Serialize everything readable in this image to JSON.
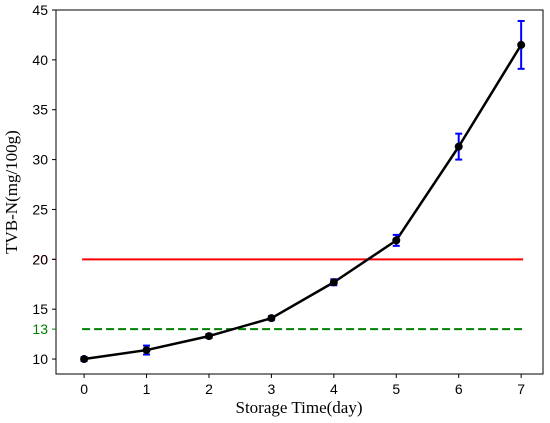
{
  "chart_data": {
    "type": "line",
    "title": "",
    "xlabel": "Storage Time(day)",
    "ylabel": "TVB-N(mg/100g)",
    "xlim": [
      -0.45,
      7.35
    ],
    "ylim": [
      8.5,
      45
    ],
    "xticks": [
      0,
      1,
      2,
      3,
      4,
      5,
      6,
      7
    ],
    "yticks": [
      10,
      15,
      20,
      25,
      30,
      35,
      40,
      45
    ],
    "grid": false,
    "legend": "none",
    "series": [
      {
        "x": [
          0,
          1,
          2,
          3,
          4,
          5,
          6,
          7
        ],
        "values": [
          10.0,
          10.9,
          12.3,
          14.1,
          17.7,
          21.9,
          31.3,
          41.5
        ],
        "errors": [
          0.2,
          0.45,
          0.2,
          0.2,
          0.3,
          0.55,
          1.3,
          2.4
        ],
        "color": "#000000",
        "error_color": "#0000ff"
      }
    ],
    "reference_lines": [
      {
        "y": 20,
        "label": "20",
        "color": "#ff0000",
        "style": "solid"
      },
      {
        "y": 13,
        "label": "13",
        "color": "#008000",
        "style": "dashed"
      }
    ]
  }
}
